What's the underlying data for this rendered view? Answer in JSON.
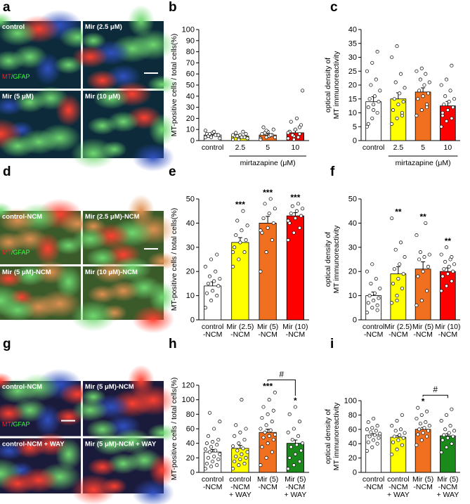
{
  "images": [
    {
      "label": "a",
      "tiles": [
        "control",
        "Mir (2.5 μM)",
        "Mir (5 μM)",
        "Mir (10 μM)"
      ],
      "stain": [
        "MT",
        "/GFAP"
      ]
    },
    {
      "label": "d",
      "tiles": [
        "control-NCM",
        "Mir (2.5 μM)-NCM",
        "Mir (5 μM)-NCM",
        "Mir (10 μM)-NCM"
      ],
      "stain": [
        "MT",
        "/GFAP"
      ]
    },
    {
      "label": "g",
      "tiles": [
        "control-NCM",
        "Mir (5 μM)-NCM",
        "control-NCM + WAY",
        "Mir (5 μM)-NCM + WAY"
      ],
      "stain": [
        "MT",
        "/GFAP"
      ]
    }
  ],
  "chart_data": [
    {
      "type": "bar",
      "label": "b",
      "ylabel": [
        "MT-positive cells / total cells(%)"
      ],
      "xlabel": "mirtazapine (μM)",
      "categories": [
        [
          "control"
        ],
        [
          "2.5"
        ],
        [
          "5"
        ],
        [
          "10"
        ]
      ],
      "values": [
        5,
        4,
        5,
        7
      ],
      "errors": [
        1,
        1,
        1.5,
        2.5
      ],
      "colors": [
        "#ffffff",
        "#ffff00",
        "#f07020",
        "#ff0000"
      ],
      "ylim": [
        0,
        100
      ],
      "yticks": [
        0,
        10,
        20,
        30,
        40,
        50,
        60,
        70,
        80,
        90,
        100
      ],
      "points": [
        [
          3,
          4,
          5,
          6,
          7,
          5,
          4,
          8,
          2,
          6,
          5,
          9,
          3
        ],
        [
          1,
          2,
          3,
          4,
          5,
          6,
          7,
          3,
          2,
          4,
          8,
          5,
          1
        ],
        [
          2,
          3,
          5,
          6,
          8,
          10,
          12,
          4,
          3,
          7,
          5,
          1,
          9
        ],
        [
          2,
          4,
          6,
          8,
          10,
          14,
          17,
          20,
          45,
          5,
          3,
          7,
          1,
          12
        ]
      ]
    },
    {
      "type": "bar",
      "label": "c",
      "ylabel": [
        "optical density of",
        "MT immunoreactivity"
      ],
      "xlabel": "mirtazapine (μM)",
      "categories": [
        [
          "control"
        ],
        [
          "2.5"
        ],
        [
          "5"
        ],
        [
          "10"
        ]
      ],
      "values": [
        14,
        15,
        17.5,
        12.5
      ],
      "errors": [
        1.8,
        2.2,
        1.5,
        1.6
      ],
      "colors": [
        "#ffffff",
        "#ffff00",
        "#f07020",
        "#ff0000"
      ],
      "ylim": [
        0,
        40
      ],
      "yticks": [
        0,
        5,
        10,
        15,
        20,
        25,
        30,
        35,
        40
      ],
      "points": [
        [
          5,
          8,
          10,
          12,
          13,
          14,
          15,
          16,
          18,
          20,
          22,
          25,
          28,
          32,
          6,
          11
        ],
        [
          6,
          8,
          9,
          11,
          13,
          14,
          15,
          17,
          19,
          21,
          24,
          30,
          34,
          10
        ],
        [
          9,
          11,
          13,
          15,
          16,
          17,
          18,
          20,
          21,
          22,
          24,
          25,
          26,
          12
        ],
        [
          5,
          7,
          8,
          10,
          11,
          12,
          13,
          14,
          15,
          16,
          18,
          20,
          22,
          27,
          9
        ]
      ]
    },
    {
      "type": "bar",
      "label": "e",
      "ylabel": [
        "MT-positive cells / total cells(%)"
      ],
      "categories": [
        [
          "control",
          "-NCM"
        ],
        [
          "Mir (2.5)",
          "-NCM"
        ],
        [
          "Mir (5)",
          "-NCM"
        ],
        [
          "Mir (10)",
          "-NCM"
        ]
      ],
      "values": [
        14,
        32,
        40,
        43
      ],
      "errors": [
        1.7,
        2,
        2.8,
        1.3
      ],
      "colors": [
        "#ffffff",
        "#ffff00",
        "#f07020",
        "#ff0000"
      ],
      "ylim": [
        0,
        50
      ],
      "yticks": [
        0,
        10,
        20,
        30,
        40,
        50
      ],
      "significance": [
        null,
        "***",
        "***",
        "***"
      ],
      "points": [
        [
          5,
          8,
          10,
          11,
          12,
          14,
          15,
          16,
          17,
          18,
          20,
          22,
          25,
          27
        ],
        [
          22,
          25,
          28,
          30,
          32,
          33,
          35,
          37,
          39,
          41,
          45,
          28
        ],
        [
          20,
          28,
          33,
          36,
          38,
          40,
          42,
          44,
          46,
          48,
          50,
          37
        ],
        [
          33,
          36,
          38,
          40,
          42,
          43,
          44,
          45,
          46,
          47,
          48,
          41
        ]
      ]
    },
    {
      "type": "bar",
      "label": "f",
      "ylabel": [
        "optical density of",
        "MT immunoreactivity"
      ],
      "categories": [
        [
          "control",
          "-NCM"
        ],
        [
          "Mir (2.5)",
          "-NCM"
        ],
        [
          "Mir (5)",
          "-NCM"
        ],
        [
          "Mir (10)",
          "-NCM"
        ]
      ],
      "values": [
        10,
        19,
        21,
        20
      ],
      "errors": [
        1.5,
        3,
        3,
        1.5
      ],
      "colors": [
        "#ffffff",
        "#ffff00",
        "#f07020",
        "#ff0000"
      ],
      "ylim": [
        0,
        50
      ],
      "yticks": [
        0,
        10,
        20,
        30,
        40,
        50
      ],
      "significance": [
        null,
        "**",
        "**",
        "**"
      ],
      "points": [
        [
          3,
          5,
          6,
          7,
          8,
          9,
          10,
          11,
          13,
          15,
          17,
          20,
          23,
          4
        ],
        [
          7,
          10,
          13,
          15,
          17,
          19,
          21,
          23,
          26,
          29,
          32,
          42,
          8
        ],
        [
          6,
          8,
          12,
          18,
          20,
          22,
          25,
          26,
          27,
          28,
          40,
          35
        ],
        [
          12,
          14,
          16,
          18,
          19,
          20,
          21,
          22,
          23,
          24,
          25,
          27,
          30,
          26
        ]
      ]
    },
    {
      "type": "bar",
      "label": "h",
      "ylabel": [
        "MT-positive cells / total cells(%)"
      ],
      "categories": [
        [
          "control",
          "-NCM"
        ],
        [
          "control",
          "-NCM",
          "+ WAY"
        ],
        [
          "Mir (5)",
          "-NCM"
        ],
        [
          "Mir (5)",
          "-NCM",
          "+ WAY"
        ]
      ],
      "values": [
        28,
        33,
        55,
        40
      ],
      "errors": [
        3.5,
        4,
        4.5,
        4.5
      ],
      "colors": [
        "#ffffff",
        "#ffff00",
        "#f07020",
        "#1a8a1a"
      ],
      "ylim": [
        0,
        120
      ],
      "yticks": [
        0,
        20,
        40,
        60,
        80,
        100,
        120
      ],
      "significance": [
        null,
        null,
        "***",
        "*"
      ],
      "brackets": [
        {
          "pair": [
            2,
            3
          ],
          "text": "#"
        }
      ],
      "points": [
        [
          5,
          8,
          10,
          12,
          15,
          18,
          20,
          22,
          25,
          28,
          30,
          32,
          35,
          38,
          40,
          42,
          45,
          50,
          60,
          70,
          82
        ],
        [
          5,
          10,
          12,
          15,
          18,
          20,
          22,
          25,
          28,
          30,
          33,
          36,
          40,
          45,
          50,
          55,
          60,
          65,
          100
        ],
        [
          10,
          20,
          28,
          35,
          40,
          45,
          48,
          50,
          52,
          55,
          58,
          60,
          65,
          70,
          75,
          80,
          85,
          90,
          100,
          110
        ],
        [
          5,
          10,
          15,
          20,
          25,
          30,
          35,
          38,
          40,
          45,
          50,
          55,
          60,
          70,
          80,
          90
        ]
      ]
    },
    {
      "type": "bar",
      "label": "i",
      "ylabel": [
        "optical density of",
        "MT immunoreactivity"
      ],
      "categories": [
        [
          "control",
          "-NCM"
        ],
        [
          "control",
          "-NCM",
          "+ WAY"
        ],
        [
          "Mir (5)",
          "-NCM"
        ],
        [
          "Mir (5)",
          "-NCM",
          "+ WAY"
        ]
      ],
      "values": [
        52,
        49,
        60,
        51
      ],
      "errors": [
        2,
        2.3,
        2.6,
        3
      ],
      "colors": [
        "#ffffff",
        "#ffff00",
        "#f07020",
        "#1a8a1a"
      ],
      "ylim": [
        0,
        100
      ],
      "yticks": [
        0,
        20,
        40,
        60,
        80,
        100
      ],
      "significance": [
        null,
        null,
        "*",
        null
      ],
      "brackets": [
        {
          "pair": [
            2,
            3
          ],
          "text": "#"
        }
      ],
      "points": [
        [
          30,
          35,
          40,
          42,
          45,
          48,
          50,
          52,
          54,
          56,
          58,
          60,
          62,
          65,
          70,
          75
        ],
        [
          25,
          32,
          38,
          42,
          45,
          48,
          50,
          52,
          55,
          58,
          60,
          65,
          72,
          80
        ],
        [
          38,
          45,
          50,
          53,
          55,
          58,
          60,
          62,
          65,
          68,
          70,
          75,
          80,
          85,
          90
        ],
        [
          28,
          35,
          40,
          45,
          48,
          50,
          52,
          55,
          58,
          60,
          65,
          72,
          80,
          88
        ]
      ]
    }
  ]
}
